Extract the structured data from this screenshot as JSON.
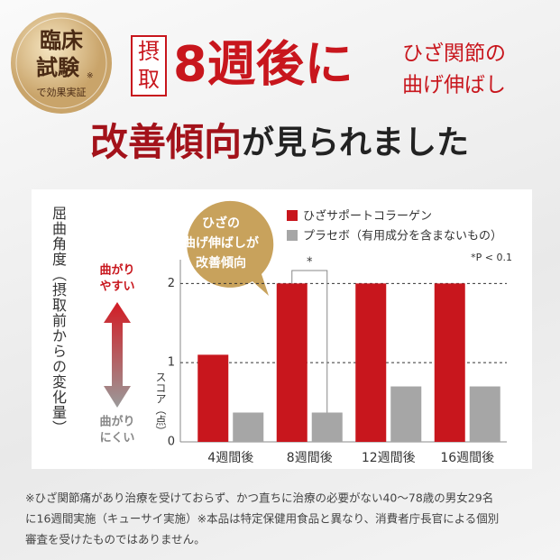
{
  "badge": {
    "line1": "臨床",
    "line2": "試験",
    "mark": "※",
    "line3": "で効果実証"
  },
  "headline": {
    "tag1": "摂",
    "tag2": "取",
    "big": "8週後に",
    "side1": "ひざ関節の",
    "side2": "曲げ伸ばし",
    "line2a": "改善傾向",
    "line2b": "が見られました"
  },
  "chart_data": {
    "type": "bar",
    "y_label": "屈曲角度（摂取前からの変化量）",
    "up_label": [
      "曲がり",
      "やすい"
    ],
    "down_label": [
      "曲がり",
      "にくい"
    ],
    "callout": [
      "ひざの",
      "曲げ伸ばしが",
      "改善傾向"
    ],
    "axis_title": "スコア（点）",
    "significance": "*",
    "note": "*P < 0.1",
    "categories": [
      "4週間後",
      "8週間後",
      "12週間後",
      "16週間後"
    ],
    "series": [
      {
        "name": "ひざサポートコラーゲン",
        "color": "#c8161d",
        "values": [
          1.1,
          2,
          2,
          2
        ]
      },
      {
        "name": "プラセボ（有用成分を含まないもの）",
        "color": "#a6a6a6",
        "values": [
          0.37,
          0.37,
          0.7,
          0.7
        ]
      }
    ],
    "ylim": [
      0,
      2.3
    ],
    "yticks": [
      0,
      1,
      2
    ],
    "grid": true
  },
  "footnote": [
    "※ひざ関節痛があり治療を受けておらず、かつ直ちに治療の必要がない40～78歳の男女29名",
    "に16週間実施（キューサイ実施）※本品は特定保健用食品と異なり、消費者庁長官による個別",
    "審査を受けたものではありません。"
  ]
}
